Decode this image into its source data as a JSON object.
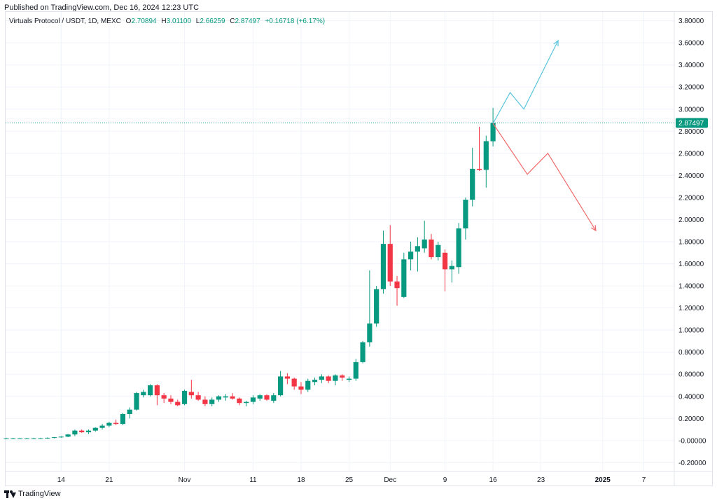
{
  "header": {
    "published": "Published on TradingView.com, Dec 16, 2024 12:23 UTC"
  },
  "legend": {
    "symbol": "Virtuals Protocol / USDT, 1D, MEXC",
    "o_label": "O",
    "o_value": "2.70894",
    "h_label": "H",
    "h_value": "3.01100",
    "l_label": "L",
    "l_value": "2.66259",
    "c_label": "C",
    "c_value": "2.87497",
    "change": "+0.16718 (+6.17%)"
  },
  "footer": {
    "brand": "TradingView"
  },
  "colors": {
    "up": "#089981",
    "down": "#f23645",
    "grid": "#f0f3fa",
    "proj_up": "#5bc5de",
    "proj_down": "#f06b6b",
    "price_tag": "#089981"
  },
  "chart_data": {
    "type": "candlestick",
    "ylim": [
      -0.28,
      3.88
    ],
    "y_ticks": [
      "3.80000",
      "3.60000",
      "3.40000",
      "3.20000",
      "3.00000",
      "2.80000",
      "2.60000",
      "2.40000",
      "2.20000",
      "2.00000",
      "1.80000",
      "1.60000",
      "1.40000",
      "1.20000",
      "1.00000",
      "0.80000",
      "0.60000",
      "0.40000",
      "0.20000",
      "-0.00000",
      "-0.20000"
    ],
    "y_tick_values": [
      3.8,
      3.6,
      3.4,
      3.2,
      3.0,
      2.8,
      2.6,
      2.4,
      2.2,
      2.0,
      1.8,
      1.6,
      1.4,
      1.2,
      1.0,
      0.8,
      0.6,
      0.4,
      0.2,
      0.0,
      -0.2
    ],
    "x_ticks": [
      {
        "label": "14",
        "i": 8,
        "bold": false
      },
      {
        "label": "21",
        "i": 15,
        "bold": false
      },
      {
        "label": "Nov",
        "i": 26,
        "bold": false
      },
      {
        "label": "11",
        "i": 36,
        "bold": false
      },
      {
        "label": "18",
        "i": 43,
        "bold": false
      },
      {
        "label": "25",
        "i": 50,
        "bold": false
      },
      {
        "label": "Dec",
        "i": 56,
        "bold": false
      },
      {
        "label": "9",
        "i": 64,
        "bold": false
      },
      {
        "label": "16",
        "i": 71,
        "bold": false
      },
      {
        "label": "23",
        "i": 78,
        "bold": false
      },
      {
        "label": "2025",
        "i": 87,
        "bold": true
      },
      {
        "label": "7",
        "i": 93,
        "bold": false
      }
    ],
    "last_price": 2.87497,
    "last_price_label": "2.87497",
    "candles": [
      [
        0.02,
        0.025,
        0.015,
        0.02
      ],
      [
        0.02,
        0.025,
        0.015,
        0.02
      ],
      [
        0.02,
        0.025,
        0.015,
        0.02
      ],
      [
        0.02,
        0.025,
        0.015,
        0.02
      ],
      [
        0.02,
        0.025,
        0.015,
        0.02
      ],
      [
        0.02,
        0.025,
        0.015,
        0.02
      ],
      [
        0.02,
        0.028,
        0.015,
        0.025
      ],
      [
        0.025,
        0.032,
        0.02,
        0.03
      ],
      [
        0.03,
        0.04,
        0.025,
        0.035
      ],
      [
        0.035,
        0.06,
        0.03,
        0.055
      ],
      [
        0.055,
        0.1,
        0.04,
        0.09
      ],
      [
        0.09,
        0.1,
        0.07,
        0.075
      ],
      [
        0.075,
        0.1,
        0.06,
        0.09
      ],
      [
        0.09,
        0.12,
        0.08,
        0.115
      ],
      [
        0.115,
        0.15,
        0.1,
        0.135
      ],
      [
        0.135,
        0.17,
        0.12,
        0.16
      ],
      [
        0.16,
        0.19,
        0.14,
        0.15
      ],
      [
        0.15,
        0.25,
        0.14,
        0.24
      ],
      [
        0.24,
        0.3,
        0.2,
        0.28
      ],
      [
        0.28,
        0.44,
        0.27,
        0.43
      ],
      [
        0.41,
        0.46,
        0.39,
        0.44
      ],
      [
        0.41,
        0.51,
        0.4,
        0.5
      ],
      [
        0.5,
        0.51,
        0.32,
        0.41
      ],
      [
        0.41,
        0.43,
        0.34,
        0.38
      ],
      [
        0.38,
        0.41,
        0.33,
        0.35
      ],
      [
        0.35,
        0.37,
        0.31,
        0.32
      ],
      [
        0.33,
        0.46,
        0.32,
        0.45
      ],
      [
        0.44,
        0.55,
        0.38,
        0.41
      ],
      [
        0.41,
        0.44,
        0.36,
        0.37
      ],
      [
        0.37,
        0.4,
        0.31,
        0.33
      ],
      [
        0.33,
        0.39,
        0.31,
        0.37
      ],
      [
        0.37,
        0.41,
        0.35,
        0.4
      ],
      [
        0.39,
        0.42,
        0.36,
        0.4
      ],
      [
        0.4,
        0.43,
        0.37,
        0.38
      ],
      [
        0.38,
        0.39,
        0.32,
        0.34
      ],
      [
        0.34,
        0.36,
        0.31,
        0.35
      ],
      [
        0.35,
        0.41,
        0.33,
        0.39
      ],
      [
        0.38,
        0.42,
        0.36,
        0.41
      ],
      [
        0.41,
        0.42,
        0.36,
        0.37
      ],
      [
        0.36,
        0.43,
        0.34,
        0.41
      ],
      [
        0.41,
        0.63,
        0.4,
        0.58
      ],
      [
        0.58,
        0.61,
        0.51,
        0.56
      ],
      [
        0.56,
        0.57,
        0.46,
        0.49
      ],
      [
        0.49,
        0.53,
        0.42,
        0.46
      ],
      [
        0.46,
        0.56,
        0.44,
        0.54
      ],
      [
        0.53,
        0.57,
        0.5,
        0.55
      ],
      [
        0.55,
        0.6,
        0.52,
        0.58
      ],
      [
        0.58,
        0.59,
        0.52,
        0.54
      ],
      [
        0.54,
        0.6,
        0.5,
        0.59
      ],
      [
        0.59,
        0.6,
        0.54,
        0.57
      ],
      [
        0.55,
        0.58,
        0.53,
        0.56
      ],
      [
        0.56,
        0.74,
        0.54,
        0.71
      ],
      [
        0.71,
        0.9,
        0.7,
        0.89
      ],
      [
        0.89,
        1.54,
        0.85,
        1.06
      ],
      [
        1.06,
        1.4,
        1.03,
        1.37
      ],
      [
        1.37,
        1.9,
        1.33,
        1.78
      ],
      [
        1.78,
        1.95,
        1.4,
        1.44
      ],
      [
        1.44,
        1.49,
        1.22,
        1.38
      ],
      [
        1.3,
        1.7,
        1.29,
        1.64
      ],
      [
        1.64,
        1.8,
        1.54,
        1.71
      ],
      [
        1.71,
        1.84,
        1.53,
        1.76
      ],
      [
        1.74,
        1.99,
        1.7,
        1.82
      ],
      [
        1.82,
        1.87,
        1.64,
        1.66
      ],
      [
        1.66,
        1.8,
        1.63,
        1.77
      ],
      [
        1.7,
        1.73,
        1.35,
        1.55
      ],
      [
        1.55,
        1.63,
        1.43,
        1.58
      ],
      [
        1.57,
        1.97,
        1.51,
        1.92
      ],
      [
        1.92,
        2.2,
        1.82,
        2.18
      ],
      [
        2.18,
        2.65,
        2.12,
        2.46
      ],
      [
        2.46,
        2.84,
        2.44,
        2.45
      ],
      [
        2.45,
        2.76,
        2.29,
        2.71
      ],
      [
        2.70894,
        3.011,
        2.66259,
        2.87497
      ]
    ],
    "projections": [
      {
        "name": "",
        "color": "proj_up",
        "points": [
          [
            71,
            2.87
          ],
          [
            73.5,
            3.15
          ],
          [
            75.5,
            3.0
          ],
          [
            80.5,
            3.62
          ]
        ]
      },
      {
        "name": "",
        "color": "proj_down",
        "points": [
          [
            71,
            2.87
          ],
          [
            76,
            2.41
          ],
          [
            79,
            2.6
          ],
          [
            86,
            1.9
          ]
        ]
      }
    ]
  }
}
